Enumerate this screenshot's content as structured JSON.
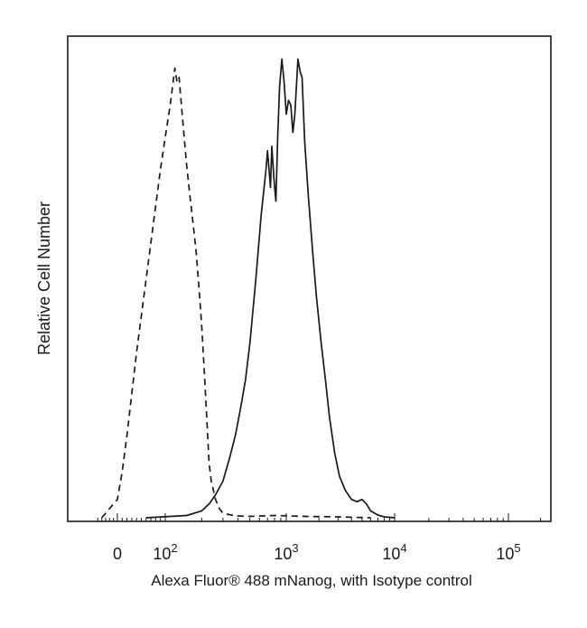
{
  "chart_data": {
    "type": "line",
    "title": "",
    "xlabel": "Alexa Fluor® 488 mNanog, with Isotype control",
    "ylabel": "Relative Cell Number",
    "x_scale": "biexponential (logicle)",
    "xlim": [
      -60,
      250000
    ],
    "ylim": [
      0,
      105
    ],
    "x_ticks": [
      {
        "value": 0,
        "base": "0",
        "exp": ""
      },
      {
        "value": 100,
        "base": "10",
        "exp": "2"
      },
      {
        "value": 1000,
        "base": "10",
        "exp": "3"
      },
      {
        "value": 10000,
        "base": "10",
        "exp": "4"
      },
      {
        "value": 100000,
        "base": "10",
        "exp": "5"
      }
    ],
    "grid": false,
    "legend": "none",
    "series": [
      {
        "style": "solid",
        "color": "#1a1a1a",
        "x": [
          60,
          150,
          200,
          230,
          260,
          300,
          340,
          380,
          420,
          460,
          500,
          560,
          620,
          680,
          700,
          720,
          740,
          760,
          790,
          820,
          850,
          880,
          920,
          960,
          1000,
          1050,
          1100,
          1150,
          1200,
          1280,
          1350,
          1400,
          1480,
          1600,
          1750,
          1900,
          2100,
          2300,
          2500,
          2800,
          3100,
          3500,
          4000,
          4500,
          5000,
          5500,
          6000,
          7000,
          8000,
          10000
        ],
        "y": [
          0,
          0.5,
          1.5,
          3,
          5,
          8,
          13,
          18,
          24,
          30,
          38,
          52,
          66,
          76,
          80,
          76,
          72,
          81,
          74,
          69,
          83,
          94,
          100,
          95,
          88,
          91,
          90,
          84,
          88,
          100,
          97,
          96,
          82,
          70,
          58,
          48,
          38,
          30,
          22,
          14,
          9,
          6,
          4,
          3.5,
          4,
          3,
          1.5,
          0.6,
          0.2,
          0
        ]
      },
      {
        "style": "dashed",
        "color": "#1a1a1a",
        "x": [
          -40,
          -20,
          0,
          10,
          20,
          30,
          40,
          50,
          60,
          70,
          80,
          90,
          100,
          110,
          120,
          125,
          130,
          140,
          150,
          160,
          170,
          180,
          190,
          200,
          210,
          220,
          230,
          240,
          250,
          260,
          280,
          300,
          350,
          400,
          500,
          800,
          1500,
          3000,
          6000
        ],
        "y": [
          0,
          2,
          4,
          10,
          18,
          27,
          36,
          44,
          52,
          60,
          68,
          76,
          83,
          90,
          98,
          95,
          96,
          86,
          77,
          70,
          64,
          58,
          50,
          42,
          32,
          22,
          12,
          8,
          6,
          4,
          2,
          1,
          0.6,
          0.4,
          0.3,
          0.5,
          0.3,
          0.2,
          0
        ]
      }
    ]
  }
}
